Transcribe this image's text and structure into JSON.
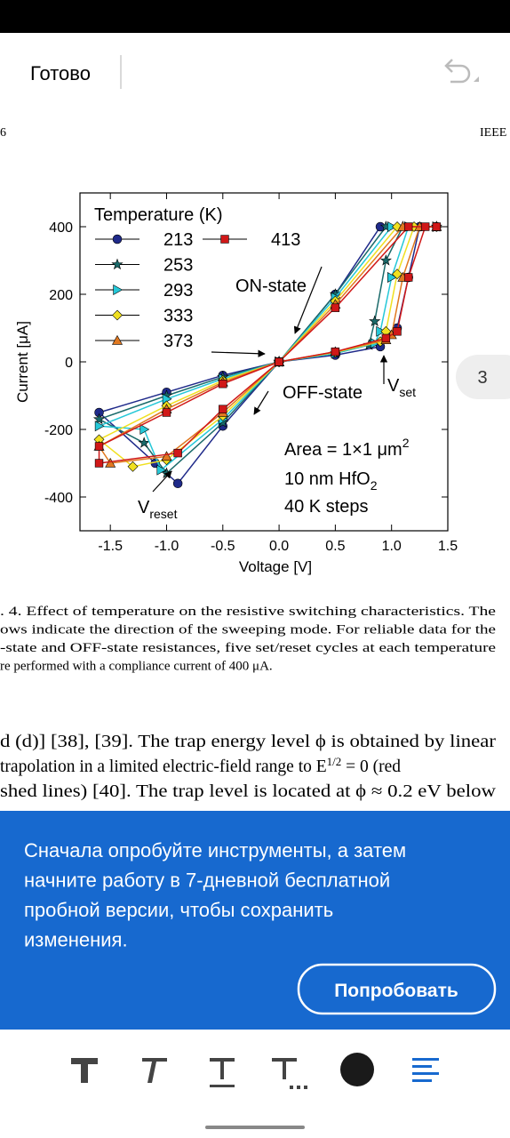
{
  "app_bar": {
    "done": "Готово"
  },
  "page": {
    "number": "6",
    "journal": "IEEE",
    "side_page": "3"
  },
  "chart_data": {
    "type": "line",
    "xlabel": "Voltage [V]",
    "ylabel": "Current [μA]",
    "legend_title": "Temperature (K)",
    "xlim": [
      -1.77,
      1.5
    ],
    "ylim": [
      -500,
      500
    ],
    "xticks": [
      {
        "value": -1.5,
        "label": "-1.5"
      },
      {
        "value": -1.0,
        "label": "-1.0"
      },
      {
        "value": -0.5,
        "label": "-0.5"
      },
      {
        "value": 0.0,
        "label": "0.0"
      },
      {
        "value": 0.5,
        "label": "0.5"
      },
      {
        "value": 1.0,
        "label": "1.0"
      },
      {
        "value": 1.5,
        "label": "1.5"
      }
    ],
    "yticks": [
      -400,
      -200,
      0,
      200,
      400
    ],
    "annotations": {
      "on_state": "ON-state",
      "off_state": "OFF-state",
      "vset": {
        "main": "V",
        "sub": "set"
      },
      "vreset": {
        "main": "V",
        "sub": "reset"
      },
      "area": {
        "main": "Area = 1×1 μm",
        "sup": "2"
      },
      "oxide": {
        "main": "10 nm HfO",
        "sub": "2"
      },
      "steps": "40 K steps"
    },
    "series": [
      {
        "name": "213",
        "color": "#1f2a8a",
        "marker": "circle",
        "x": [
          0,
          0.5,
          0.9,
          1.05,
          1.15,
          1.25,
          1.4,
          0.9,
          0.5,
          0,
          -0.5,
          -0.9,
          -1.1,
          -1.6,
          -1.0,
          -0.5,
          0
        ],
        "values": [
          0,
          20,
          45,
          100,
          250,
          400,
          400,
          400,
          200,
          0,
          -190,
          -360,
          -300,
          -150,
          -90,
          -40,
          0
        ]
      },
      {
        "name": "253",
        "color": "#1a6a6a",
        "marker": "star",
        "x": [
          0,
          0.5,
          0.8,
          0.85,
          0.95,
          1.1,
          1.4,
          0.95,
          0.5,
          0,
          -0.5,
          -1.0,
          -1.2,
          -1.6,
          -1.0,
          -0.5,
          0
        ],
        "values": [
          0,
          25,
          50,
          120,
          300,
          400,
          400,
          400,
          200,
          0,
          -180,
          -330,
          -240,
          -170,
          -100,
          -45,
          0
        ],
        "pad": 0
      },
      {
        "name": "293",
        "color": "#25c8d8",
        "marker": "triright",
        "x": [
          0,
          0.5,
          0.85,
          0.9,
          1.0,
          1.15,
          1.4,
          1.0,
          0.5,
          0,
          -0.5,
          -1.05,
          -1.2,
          -1.6,
          -1.0,
          -0.5,
          0
        ],
        "values": [
          0,
          25,
          55,
          90,
          250,
          400,
          400,
          400,
          190,
          0,
          -170,
          -320,
          -200,
          -190,
          -110,
          -50,
          0
        ]
      },
      {
        "name": "333",
        "color": "#f0e020",
        "marker": "diamond",
        "x": [
          0,
          0.5,
          0.9,
          0.95,
          1.05,
          1.2,
          1.4,
          1.05,
          0.5,
          0,
          -0.5,
          -1.0,
          -1.3,
          -1.6,
          -1.0,
          -0.5,
          0
        ],
        "values": [
          0,
          28,
          60,
          90,
          260,
          400,
          400,
          400,
          180,
          0,
          -160,
          -290,
          -310,
          -230,
          -130,
          -55,
          0
        ]
      },
      {
        "name": "373",
        "color": "#e07820",
        "marker": "triup",
        "x": [
          0,
          0.5,
          0.95,
          1.0,
          1.1,
          1.25,
          1.4,
          1.1,
          0.5,
          0,
          -0.5,
          -1.0,
          -1.5,
          -1.6,
          -1.0,
          -0.5,
          0
        ],
        "values": [
          0,
          30,
          65,
          80,
          250,
          400,
          400,
          400,
          170,
          0,
          -150,
          -280,
          -300,
          -250,
          -140,
          -60,
          0
        ]
      },
      {
        "name": "413",
        "color": "#d01818",
        "marker": "square",
        "x": [
          0,
          0.5,
          0.95,
          1.05,
          1.15,
          1.3,
          1.4,
          1.15,
          0.5,
          0,
          -0.5,
          -0.9,
          -1.6,
          -1.6,
          -1.0,
          -0.5,
          0
        ],
        "values": [
          0,
          30,
          70,
          90,
          250,
          400,
          400,
          400,
          160,
          0,
          -140,
          -270,
          -300,
          -250,
          -150,
          -65,
          0
        ]
      }
    ]
  },
  "caption": [
    ". 4.   Effect of temperature on the resistive switching characteristics. The",
    "ows indicate the direction of the sweeping mode. For reliable data for the",
    "-state and OFF-state resistances, five set/reset cycles at each temperature",
    "re performed with a compliance current of 400 μA."
  ],
  "body": {
    "line1": "d (d)] [38], [39]. The trap energy level ϕ is obtained by linear",
    "line2": {
      "a": "trapolation in a limited electric-field range to E",
      "sup": "1/2",
      "b": " = 0 (red"
    },
    "line3": "shed lines) [40]. The trap level is located at ϕ ≈ 0.2 eV below"
  },
  "banner": {
    "lines": [
      "Сначала опробуйте инструменты, а затем",
      "начните работу в 7-дневной бесплатной",
      "пробной версии, чтобы сохранить",
      "изменения."
    ],
    "button": "Попробовать"
  }
}
